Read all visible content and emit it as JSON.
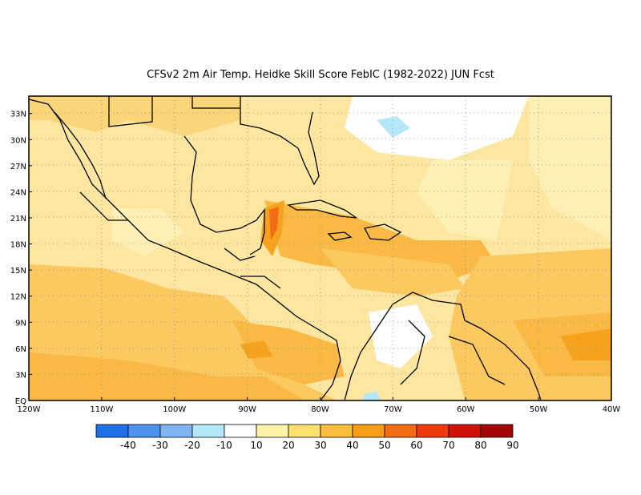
{
  "title": "CFSv2  2m Air Temp. Heidke Skill Score FebIC (1982-2022) JUN Fcst",
  "map": {
    "lon_range": [
      -120,
      -40
    ],
    "lat_range": [
      0,
      35
    ],
    "lat_ticks": [
      "33N",
      "30N",
      "27N",
      "24N",
      "21N",
      "18N",
      "15N",
      "12N",
      "9N",
      "6N",
      "3N",
      "EQ"
    ],
    "lat_values": [
      33,
      30,
      27,
      24,
      21,
      18,
      15,
      12,
      9,
      6,
      3,
      0
    ],
    "lon_ticks": [
      "120W",
      "110W",
      "100W",
      "90W",
      "80W",
      "70W",
      "60W",
      "50W",
      "40W"
    ],
    "lon_values": [
      -120,
      -110,
      -100,
      -90,
      -80,
      -70,
      -60,
      -50,
      -40
    ],
    "grid": "dotted"
  },
  "colorbar": {
    "labels": [
      "-40",
      "-30",
      "-20",
      "-10",
      "10",
      "20",
      "30",
      "40",
      "50",
      "60",
      "70",
      "80",
      "90"
    ],
    "colors": [
      "#1f6fe8",
      "#4b93ee",
      "#80b4f3",
      "#b4e8f8",
      "#ffffff",
      "#fff3a8",
      "#fddf6e",
      "#fbbd3c",
      "#f79e14",
      "#f36b12",
      "#ef3b0c",
      "#cf1208",
      "#a30606"
    ]
  }
}
